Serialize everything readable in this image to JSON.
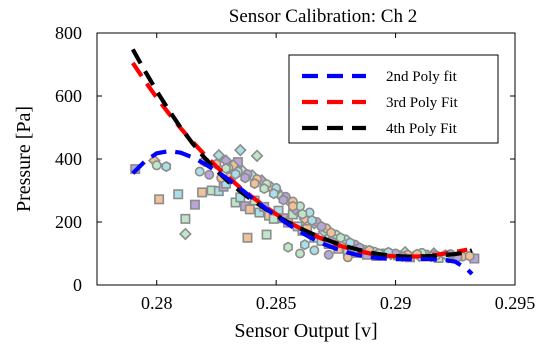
{
  "chart_data": {
    "type": "scatter",
    "title": "Sensor Calibration: Ch 2",
    "xlabel": "Sensor Output [v]",
    "ylabel": "Pressure [Pa]",
    "xlim": [
      0.2775,
      0.295
    ],
    "ylim": [
      0,
      800
    ],
    "x_ticks": [
      0.28,
      0.285,
      0.29,
      0.295
    ],
    "x_tick_labels": [
      "0.28",
      "0.285",
      "0.29",
      "0.295"
    ],
    "y_ticks": [
      0,
      200,
      400,
      600,
      800
    ],
    "y_tick_labels": [
      "0",
      "200",
      "400",
      "600",
      "800"
    ],
    "grid": false,
    "legend_position": "top-right",
    "marker_colors": {
      "edge": "#8c8c8c",
      "fills": [
        "#b7a6d6",
        "#f0c29a",
        "#bfe6c9",
        "#a9dfe6"
      ]
    },
    "scatter_series": [
      {
        "markers": "square",
        "points": [
          [
            0.2791,
            368
          ],
          [
            0.2801,
            272
          ],
          [
            0.2812,
            210
          ],
          [
            0.2809,
            288
          ],
          [
            0.2816,
            255
          ],
          [
            0.2819,
            294
          ],
          [
            0.2823,
            300
          ],
          [
            0.2826,
            298
          ],
          [
            0.2828,
            312
          ],
          [
            0.2831,
            342
          ],
          [
            0.2833,
            262
          ],
          [
            0.2835,
            278
          ],
          [
            0.2837,
            250
          ],
          [
            0.2839,
            240
          ],
          [
            0.2841,
            268
          ],
          [
            0.2843,
            230
          ],
          [
            0.2845,
            248
          ],
          [
            0.2847,
            220
          ],
          [
            0.2849,
            210
          ],
          [
            0.2851,
            236
          ],
          [
            0.2853,
            212
          ],
          [
            0.2855,
            198
          ],
          [
            0.2857,
            224
          ],
          [
            0.2859,
            186
          ],
          [
            0.2861,
            172
          ],
          [
            0.2863,
            178
          ],
          [
            0.2866,
            150
          ],
          [
            0.2869,
            140
          ],
          [
            0.2872,
            130
          ],
          [
            0.2876,
            115
          ],
          [
            0.288,
            108
          ],
          [
            0.2884,
            102
          ],
          [
            0.2888,
            96
          ],
          [
            0.2892,
            92
          ],
          [
            0.2896,
            100
          ],
          [
            0.2901,
            94
          ],
          [
            0.2906,
            88
          ],
          [
            0.2912,
            96
          ],
          [
            0.2918,
            86
          ],
          [
            0.2924,
            90
          ],
          [
            0.2933,
            84
          ],
          [
            0.2838,
            150
          ],
          [
            0.2846,
            160
          ],
          [
            0.2829,
            322
          ],
          [
            0.2834,
            390
          ]
        ]
      },
      {
        "markers": "diamond",
        "points": [
          [
            0.2799,
            395
          ],
          [
            0.2812,
            162
          ],
          [
            0.2826,
            412
          ],
          [
            0.2829,
            395
          ],
          [
            0.2832,
            380
          ],
          [
            0.2836,
            362
          ],
          [
            0.284,
            348
          ],
          [
            0.2844,
            332
          ],
          [
            0.2848,
            310
          ],
          [
            0.2852,
            282
          ],
          [
            0.2856,
            262
          ],
          [
            0.2858,
            240
          ],
          [
            0.2862,
            210
          ],
          [
            0.2866,
            196
          ],
          [
            0.287,
            170
          ],
          [
            0.2874,
            150
          ],
          [
            0.2878,
            138
          ],
          [
            0.2882,
            120
          ],
          [
            0.2886,
            110
          ],
          [
            0.289,
            105
          ],
          [
            0.2898,
            98
          ],
          [
            0.2904,
            104
          ],
          [
            0.291,
            92
          ],
          [
            0.2916,
            100
          ],
          [
            0.2922,
            88
          ],
          [
            0.2842,
            410
          ],
          [
            0.2835,
            428
          ],
          [
            0.285,
            300
          ]
        ]
      },
      {
        "markers": "circle",
        "points": [
          [
            0.28,
            380
          ],
          [
            0.2818,
            360
          ],
          [
            0.2822,
            350
          ],
          [
            0.2827,
            340
          ],
          [
            0.283,
            372
          ],
          [
            0.2834,
            360
          ],
          [
            0.2838,
            352
          ],
          [
            0.2842,
            336
          ],
          [
            0.2846,
            320
          ],
          [
            0.285,
            308
          ],
          [
            0.2854,
            280
          ],
          [
            0.2857,
            265
          ],
          [
            0.286,
            250
          ],
          [
            0.2864,
            230
          ],
          [
            0.2867,
            200
          ],
          [
            0.2871,
            180
          ],
          [
            0.2875,
            160
          ],
          [
            0.2879,
            145
          ],
          [
            0.2883,
            128
          ],
          [
            0.2887,
            112
          ],
          [
            0.2891,
            106
          ],
          [
            0.2895,
            96
          ],
          [
            0.29,
            100
          ],
          [
            0.2905,
            96
          ],
          [
            0.2911,
            102
          ],
          [
            0.2917,
            94
          ],
          [
            0.2923,
            98
          ],
          [
            0.2928,
            90
          ],
          [
            0.286,
            100
          ],
          [
            0.2866,
            110
          ],
          [
            0.2872,
            96
          ],
          [
            0.288,
            88
          ]
        ]
      },
      {
        "markers": "hexagon",
        "points": [
          [
            0.2804,
            376
          ],
          [
            0.282,
            392
          ],
          [
            0.2825,
            384
          ],
          [
            0.2829,
            370
          ],
          [
            0.2833,
            352
          ],
          [
            0.2837,
            340
          ],
          [
            0.2841,
            322
          ],
          [
            0.2845,
            306
          ],
          [
            0.2849,
            290
          ],
          [
            0.2853,
            270
          ],
          [
            0.2857,
            250
          ],
          [
            0.2861,
            225
          ],
          [
            0.2865,
            205
          ],
          [
            0.2869,
            186
          ],
          [
            0.2873,
            166
          ],
          [
            0.2877,
            150
          ],
          [
            0.2881,
            134
          ],
          [
            0.2885,
            118
          ],
          [
            0.2889,
            110
          ],
          [
            0.2893,
            100
          ],
          [
            0.2897,
            104
          ],
          [
            0.2903,
            90
          ],
          [
            0.2909,
            98
          ],
          [
            0.2915,
            90
          ],
          [
            0.2921,
            96
          ],
          [
            0.2926,
            88
          ],
          [
            0.2931,
            92
          ],
          [
            0.2855,
            120
          ],
          [
            0.2862,
            128
          ]
        ]
      }
    ],
    "fit_series": [
      {
        "name": "2nd Poly fit",
        "color": "#0000ff",
        "points": [
          [
            0.279,
            355
          ],
          [
            0.2795,
            392
          ],
          [
            0.28,
            418
          ],
          [
            0.2805,
            425
          ],
          [
            0.281,
            420
          ],
          [
            0.2815,
            405
          ],
          [
            0.282,
            385
          ],
          [
            0.2825,
            362
          ],
          [
            0.283,
            335
          ],
          [
            0.2835,
            306
          ],
          [
            0.284,
            276
          ],
          [
            0.2845,
            247
          ],
          [
            0.285,
            219
          ],
          [
            0.2855,
            193
          ],
          [
            0.286,
            169
          ],
          [
            0.2865,
            148
          ],
          [
            0.287,
            130
          ],
          [
            0.2875,
            115
          ],
          [
            0.288,
            103
          ],
          [
            0.2885,
            94
          ],
          [
            0.289,
            88
          ],
          [
            0.2895,
            84
          ],
          [
            0.29,
            82
          ],
          [
            0.2905,
            82
          ],
          [
            0.291,
            82
          ],
          [
            0.2915,
            82
          ],
          [
            0.292,
            80
          ],
          [
            0.2925,
            74
          ],
          [
            0.293,
            50
          ],
          [
            0.2932,
            35
          ]
        ]
      },
      {
        "name": "3rd Poly Fit",
        "color": "#ff0000",
        "points": [
          [
            0.279,
            705
          ],
          [
            0.2795,
            648
          ],
          [
            0.28,
            595
          ],
          [
            0.2805,
            545
          ],
          [
            0.281,
            498
          ],
          [
            0.2815,
            455
          ],
          [
            0.282,
            414
          ],
          [
            0.2825,
            376
          ],
          [
            0.283,
            342
          ],
          [
            0.2835,
            309
          ],
          [
            0.284,
            279
          ],
          [
            0.2845,
            251
          ],
          [
            0.285,
            225
          ],
          [
            0.2855,
            201
          ],
          [
            0.286,
            180
          ],
          [
            0.2865,
            161
          ],
          [
            0.287,
            144
          ],
          [
            0.2875,
            129
          ],
          [
            0.288,
            117
          ],
          [
            0.2885,
            107
          ],
          [
            0.289,
            99
          ],
          [
            0.2895,
            94
          ],
          [
            0.29,
            91
          ],
          [
            0.2905,
            90
          ],
          [
            0.291,
            91
          ],
          [
            0.2915,
            94
          ],
          [
            0.292,
            99
          ],
          [
            0.2925,
            105
          ],
          [
            0.293,
            112
          ]
        ]
      },
      {
        "name": "4th Poly Fit",
        "color": "#000000",
        "points": [
          [
            0.279,
            748
          ],
          [
            0.2795,
            680
          ],
          [
            0.28,
            616
          ],
          [
            0.2805,
            556
          ],
          [
            0.281,
            500
          ],
          [
            0.2815,
            450
          ],
          [
            0.282,
            404
          ],
          [
            0.2825,
            364
          ],
          [
            0.283,
            328
          ],
          [
            0.2835,
            297
          ],
          [
            0.284,
            269
          ],
          [
            0.2845,
            244
          ],
          [
            0.285,
            221
          ],
          [
            0.2855,
            199
          ],
          [
            0.286,
            180
          ],
          [
            0.2865,
            163
          ],
          [
            0.287,
            147
          ],
          [
            0.2875,
            133
          ],
          [
            0.288,
            121
          ],
          [
            0.2885,
            111
          ],
          [
            0.289,
            102
          ],
          [
            0.2895,
            96
          ],
          [
            0.29,
            92
          ],
          [
            0.2905,
            90
          ],
          [
            0.291,
            90
          ],
          [
            0.2915,
            92
          ],
          [
            0.292,
            95
          ],
          [
            0.2925,
            98
          ],
          [
            0.293,
            104
          ],
          [
            0.2932,
            110
          ]
        ]
      }
    ]
  }
}
